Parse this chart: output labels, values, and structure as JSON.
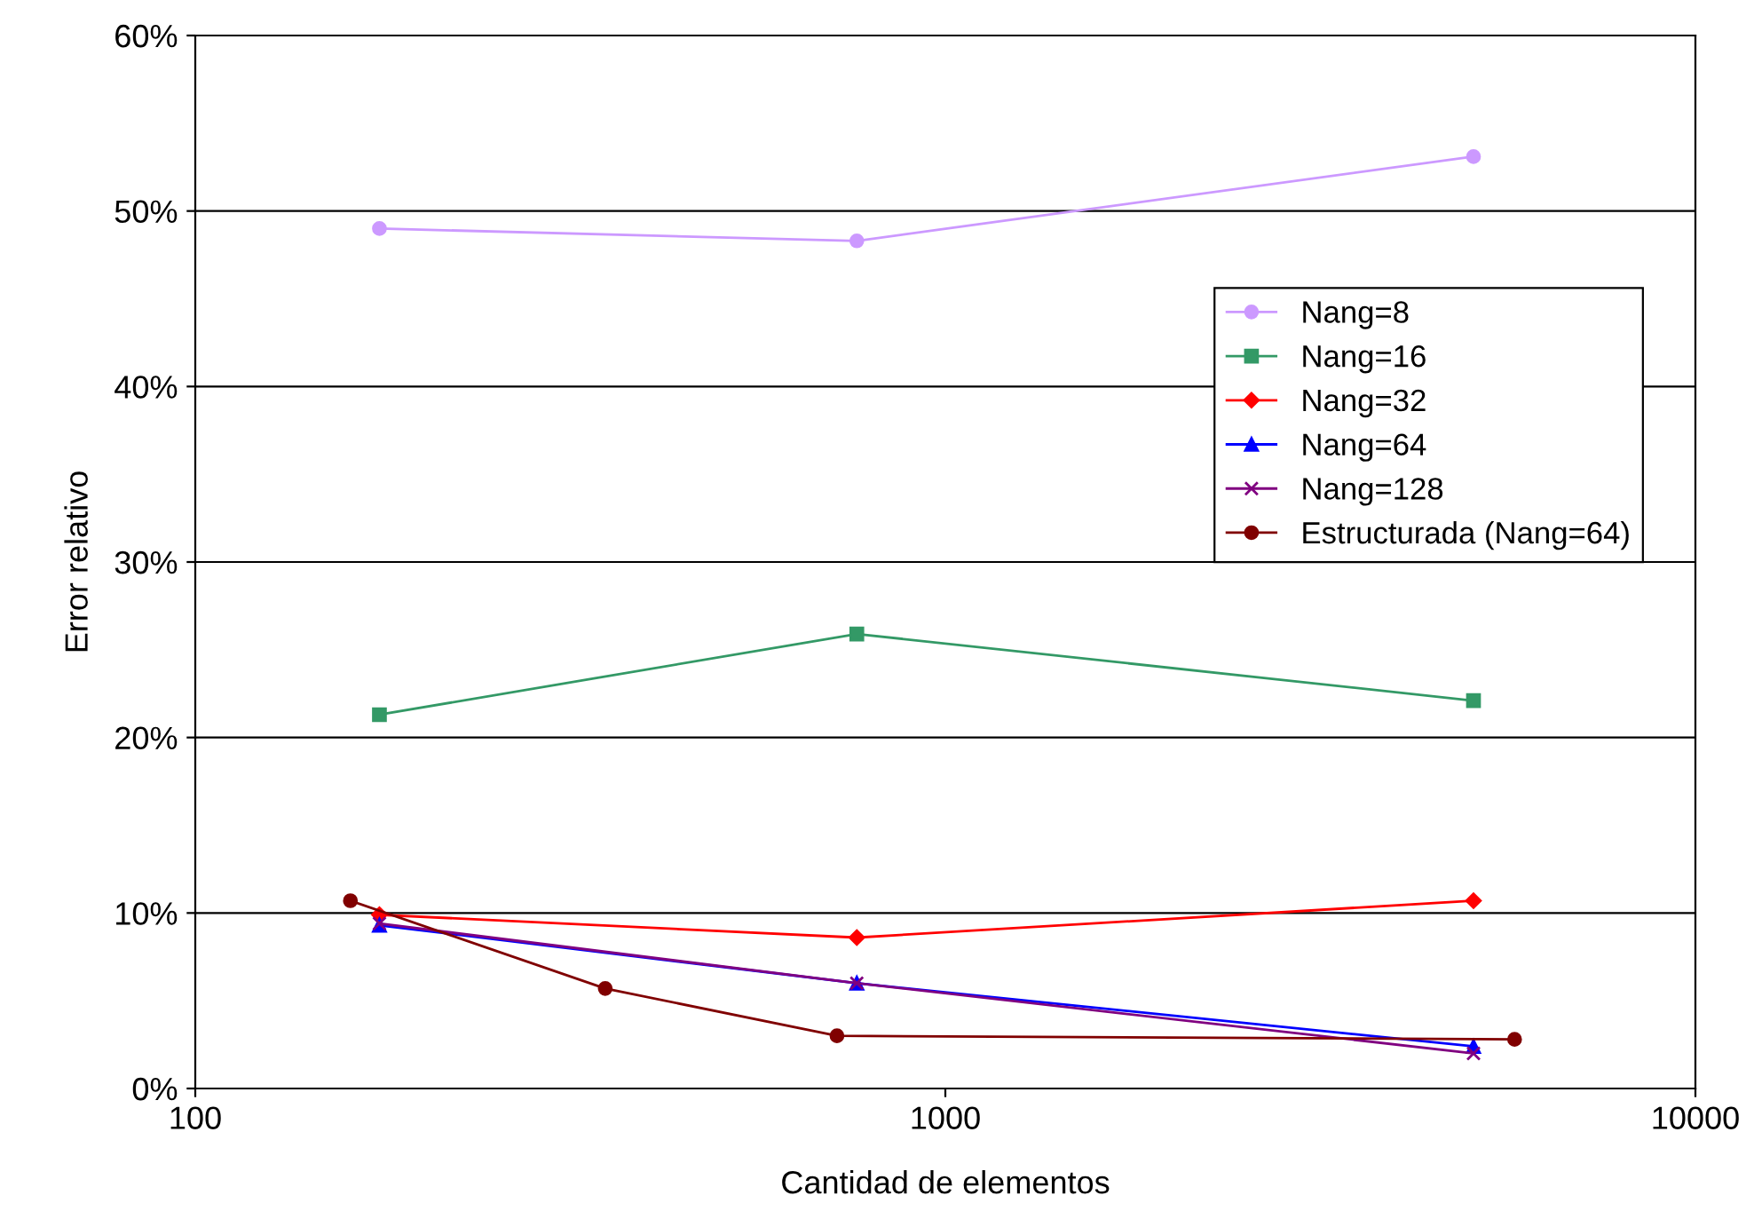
{
  "chart_data": {
    "type": "line",
    "xlabel": "Cantidad de elementos",
    "ylabel": "Error relativo",
    "log": "x",
    "xlim": [
      100,
      10000
    ],
    "xticks": [
      100,
      1000,
      10000
    ],
    "ylim": [
      0,
      60
    ],
    "yticks": [
      {
        "value": 0,
        "label": "0%"
      },
      {
        "value": 10,
        "label": "10%"
      },
      {
        "value": 20,
        "label": "20%"
      },
      {
        "value": 30,
        "label": "30%"
      },
      {
        "value": 40,
        "label": "40%"
      },
      {
        "value": 50,
        "label": "50%"
      },
      {
        "value": 60,
        "label": "60%"
      }
    ],
    "grid": "y",
    "legend": "center right",
    "line_style": "solid",
    "series": [
      {
        "name": "Nang=8",
        "color": "#cc99ff",
        "marker": "circle",
        "x": [
          176,
          762,
          5060
        ],
        "values": [
          49.0,
          48.3,
          53.1
        ]
      },
      {
        "name": "Nang=16",
        "color": "#339966",
        "marker": "square",
        "x": [
          176,
          762,
          5060
        ],
        "values": [
          21.3,
          25.9,
          22.1
        ]
      },
      {
        "name": "Nang=32",
        "color": "#ff0000",
        "marker": "diamond",
        "x": [
          176,
          762,
          5060
        ],
        "values": [
          9.9,
          8.6,
          10.7
        ]
      },
      {
        "name": "Nang=64",
        "color": "#0000ff",
        "marker": "triangle",
        "x": [
          176,
          762,
          5060
        ],
        "values": [
          9.3,
          6.0,
          2.4
        ]
      },
      {
        "name": "Nang=128",
        "color": "#800080",
        "marker": "cross",
        "x": [
          176,
          762,
          5060
        ],
        "values": [
          9.4,
          6.0,
          2.0
        ]
      },
      {
        "name": "Estructurada (Nang=64)",
        "color": "#800000",
        "marker": "circle",
        "x": [
          161,
          352,
          717,
          5740
        ],
        "values": [
          10.7,
          5.7,
          3.0,
          2.8
        ]
      }
    ]
  }
}
